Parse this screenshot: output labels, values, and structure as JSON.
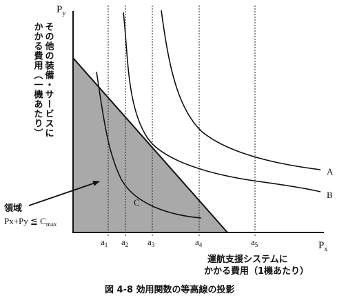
{
  "axes": {
    "y_label": "P",
    "y_label_sub": "y",
    "x_label": "P",
    "x_label_sub": "x",
    "y_caption": [
      "その他の装備・サービスに",
      "かかる費用（一機あたり）"
    ],
    "x_caption": [
      "運航支援システムに",
      "かかる費用（1機あたり）"
    ]
  },
  "region": {
    "label": "領域",
    "constraint": "Px+Py ≦ C",
    "constraint_sub": "max"
  },
  "curves": [
    {
      "name": "A"
    },
    {
      "name": "B"
    },
    {
      "name": "C"
    }
  ],
  "ticks": [
    {
      "base": "a",
      "sub": "1"
    },
    {
      "base": "a",
      "sub": "2"
    },
    {
      "base": "a",
      "sub": "3"
    },
    {
      "base": "a",
      "sub": "4"
    },
    {
      "base": "a",
      "sub": "5"
    }
  ],
  "caption": "図 4-8  効用関数の等高線の投影",
  "colors": {
    "region_fill": "#a9a9a9",
    "line": "#111111",
    "background": "#ffffff"
  }
}
